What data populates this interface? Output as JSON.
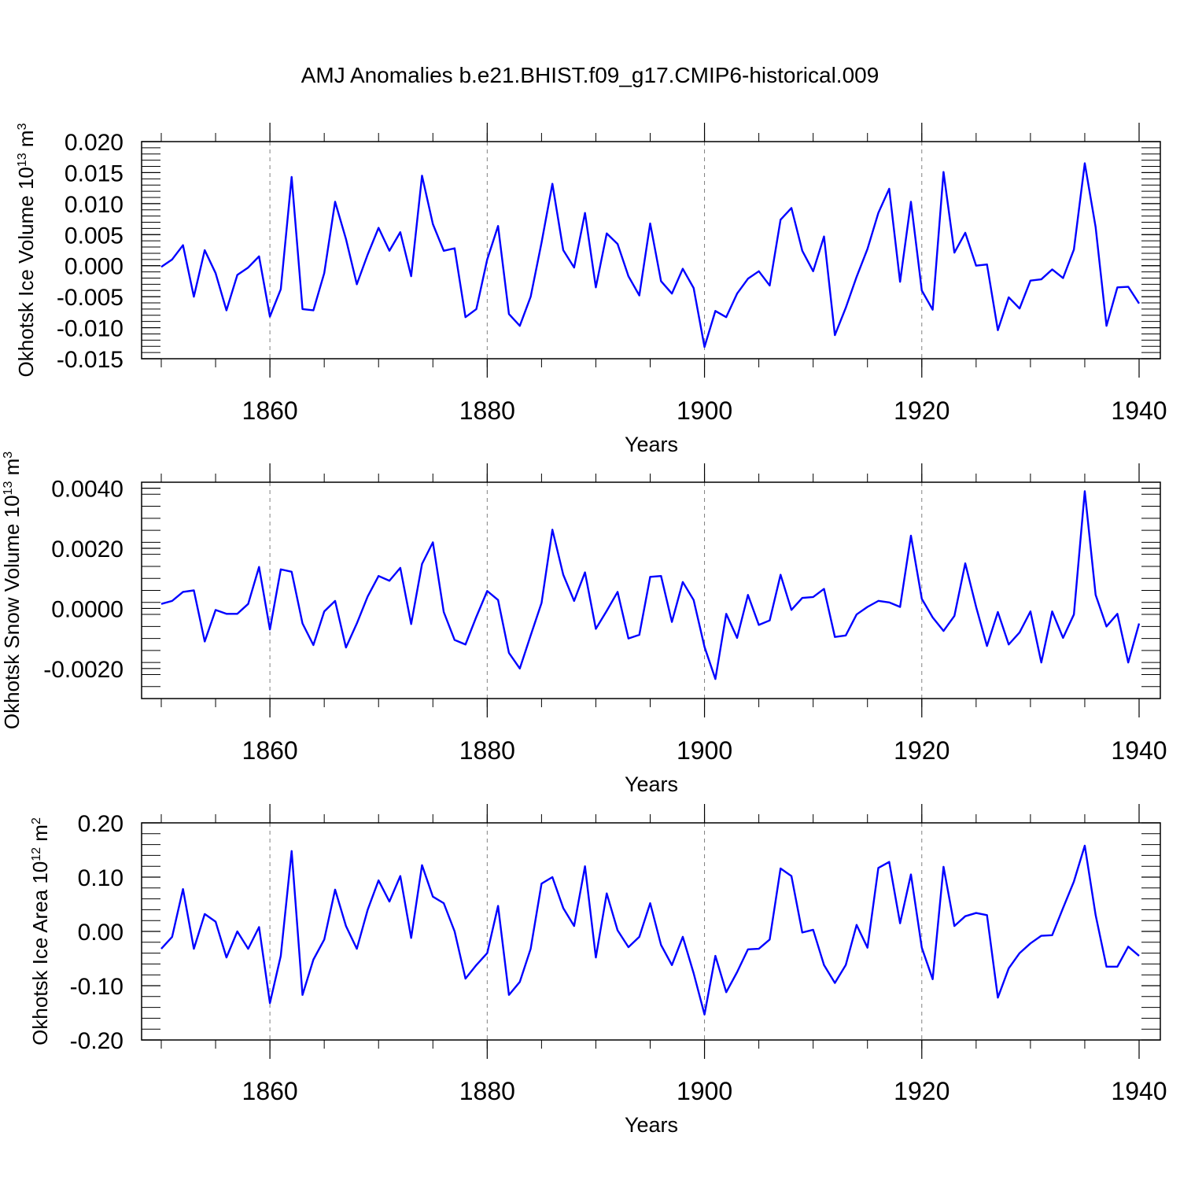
{
  "title": "AMJ Anomalies b.e21.BHIST.f09_g17.CMIP6-historical.009",
  "colors": {
    "series": "#0000ff",
    "axis": "#000000",
    "refline": "#808080"
  },
  "chart_data": [
    {
      "type": "line",
      "xlabel": "Years",
      "ylabel": {
        "prefix": "Okhotsk Ice Volume 10",
        "exp": "13",
        "unit": " m",
        "unit_exp": "3"
      },
      "xlim": [
        1850,
        1940
      ],
      "ylim": [
        -0.015,
        0.02
      ],
      "xticks": [
        "1860",
        "1880",
        "1900",
        "1920",
        "1940"
      ],
      "xtick_values": [
        1860,
        1880,
        1900,
        1920,
        1940
      ],
      "yticks": [
        "-0.015",
        "-0.010",
        "-0.005",
        "0.000",
        "0.005",
        "0.010",
        "0.015",
        "0.020"
      ],
      "ytick_values": [
        -0.015,
        -0.01,
        -0.005,
        0.0,
        0.005,
        0.01,
        0.015,
        0.02
      ],
      "vlines": [
        1860,
        1880,
        1900,
        1920
      ],
      "x_start": 1850,
      "values": [
        -0.0002,
        0.001,
        0.0033,
        -0.005,
        0.0025,
        -0.0012,
        -0.0072,
        -0.0015,
        -0.0003,
        0.0015,
        -0.0082,
        -0.0038,
        0.0143,
        -0.007,
        -0.0072,
        -0.0012,
        0.0103,
        0.0043,
        -0.003,
        0.0018,
        0.0061,
        0.0024,
        0.0054,
        -0.0017,
        0.0145,
        0.0067,
        0.0024,
        0.0028,
        -0.0083,
        -0.007,
        0.001,
        0.0064,
        -0.0078,
        -0.0097,
        -0.005,
        0.0037,
        0.0132,
        0.0025,
        -0.0003,
        0.0085,
        -0.0035,
        0.0052,
        0.0035,
        -0.0017,
        -0.0048,
        0.0068,
        -0.0025,
        -0.0045,
        -0.0005,
        -0.0036,
        -0.0131,
        -0.0073,
        -0.0083,
        -0.0045,
        -0.0021,
        -0.0009,
        -0.0032,
        0.0074,
        0.0093,
        0.0024,
        -0.0009,
        0.0047,
        -0.0112,
        -0.0068,
        -0.0018,
        0.0027,
        0.0085,
        0.0124,
        -0.0026,
        0.0103,
        -0.004,
        -0.0071,
        0.0151,
        0.0021,
        0.0053,
        0.0,
        0.0002,
        -0.0104,
        -0.0051,
        -0.0069,
        -0.0024,
        -0.0022,
        -0.0006,
        -0.002,
        0.0026,
        0.0165,
        0.0062,
        -0.0097,
        -0.0035,
        -0.0034,
        -0.0061
      ]
    },
    {
      "type": "line",
      "xlabel": "Years",
      "ylabel": {
        "prefix": "Okhotsk Snow Volume 10",
        "exp": "13",
        "unit": " m",
        "unit_exp": "3"
      },
      "xlim": [
        1850,
        1940
      ],
      "ylim": [
        -0.003,
        0.0042
      ],
      "xticks": [
        "1860",
        "1880",
        "1900",
        "1920",
        "1940"
      ],
      "xtick_values": [
        1860,
        1880,
        1900,
        1920,
        1940
      ],
      "yticks": [
        "-0.0020",
        "0.0000",
        "0.0020",
        "0.0040"
      ],
      "ytick_values": [
        -0.002,
        0.0,
        0.002,
        0.004
      ],
      "vlines": [
        1860,
        1880,
        1900,
        1920
      ],
      "x_start": 1850,
      "values": [
        0.00015,
        0.00025,
        0.00055,
        0.0006,
        -0.0011,
        -5e-05,
        -0.00018,
        -0.00018,
        0.00015,
        0.00138,
        -0.0007,
        0.0013,
        0.00122,
        -0.0005,
        -0.00122,
        -0.0001,
        0.00025,
        -0.0013,
        -0.0005,
        0.0004,
        0.00108,
        0.00092,
        0.00135,
        -0.00052,
        0.00148,
        0.0022,
        -0.00012,
        -0.00105,
        -0.0012,
        -0.00028,
        0.00058,
        0.00028,
        -0.00148,
        -0.002,
        -0.0009,
        0.00018,
        0.00262,
        0.00112,
        0.00025,
        0.0012,
        -0.00068,
        -8e-05,
        0.00055,
        -0.001,
        -0.00088,
        0.00105,
        0.00108,
        -0.00045,
        0.00088,
        0.00028,
        -0.00128,
        -0.00235,
        -0.00018,
        -0.00098,
        0.00045,
        -0.00055,
        -0.0004,
        0.00112,
        -5e-05,
        0.00035,
        0.00038,
        0.00065,
        -0.00095,
        -0.0009,
        -0.0002,
        5e-05,
        0.00025,
        0.0002,
        5e-05,
        0.00242,
        0.00032,
        -0.0003,
        -0.00075,
        -0.00025,
        0.0015,
        5e-05,
        -0.00125,
        -0.00012,
        -0.0012,
        -0.0008,
        -0.0001,
        -0.0018,
        -0.0001,
        -0.00098,
        -0.0002,
        0.0039,
        0.00045,
        -0.0006,
        -0.00018,
        -0.0018,
        -0.0005
      ]
    },
    {
      "type": "line",
      "xlabel": "Years",
      "ylabel": {
        "prefix": "Okhotsk Ice Area 10",
        "exp": "12",
        "unit": " m",
        "unit_exp": "2"
      },
      "xlim": [
        1850,
        1940
      ],
      "ylim": [
        -0.2,
        0.2
      ],
      "xticks": [
        "1860",
        "1880",
        "1900",
        "1920",
        "1940"
      ],
      "xtick_values": [
        1860,
        1880,
        1900,
        1920,
        1940
      ],
      "yticks": [
        "-0.20",
        "-0.10",
        "0.00",
        "0.10",
        "0.20"
      ],
      "ytick_values": [
        -0.2,
        -0.1,
        0.0,
        0.1,
        0.2
      ],
      "vlines": [
        1860,
        1880,
        1900,
        1920
      ],
      "x_start": 1850,
      "values": [
        -0.032,
        -0.01,
        0.078,
        -0.032,
        0.032,
        0.018,
        -0.048,
        0.0,
        -0.032,
        0.008,
        -0.132,
        -0.045,
        0.148,
        -0.117,
        -0.052,
        -0.015,
        0.077,
        0.01,
        -0.032,
        0.04,
        0.094,
        0.055,
        0.102,
        -0.012,
        0.122,
        0.064,
        0.052,
        0.0,
        -0.087,
        -0.062,
        -0.04,
        0.047,
        -0.117,
        -0.093,
        -0.032,
        0.088,
        0.1,
        0.043,
        0.01,
        0.12,
        -0.048,
        0.07,
        0.002,
        -0.029,
        -0.01,
        0.052,
        -0.025,
        -0.062,
        -0.01,
        -0.077,
        -0.153,
        -0.045,
        -0.112,
        -0.075,
        -0.033,
        -0.032,
        -0.015,
        0.116,
        0.102,
        -0.002,
        0.003,
        -0.062,
        -0.095,
        -0.062,
        0.012,
        -0.03,
        0.117,
        0.128,
        0.015,
        0.105,
        -0.03,
        -0.088,
        0.119,
        0.01,
        0.028,
        0.034,
        0.03,
        -0.122,
        -0.068,
        -0.04,
        -0.022,
        -0.008,
        -0.007,
        0.043,
        0.092,
        0.158,
        0.03,
        -0.065,
        -0.065,
        -0.028,
        -0.045
      ]
    }
  ]
}
